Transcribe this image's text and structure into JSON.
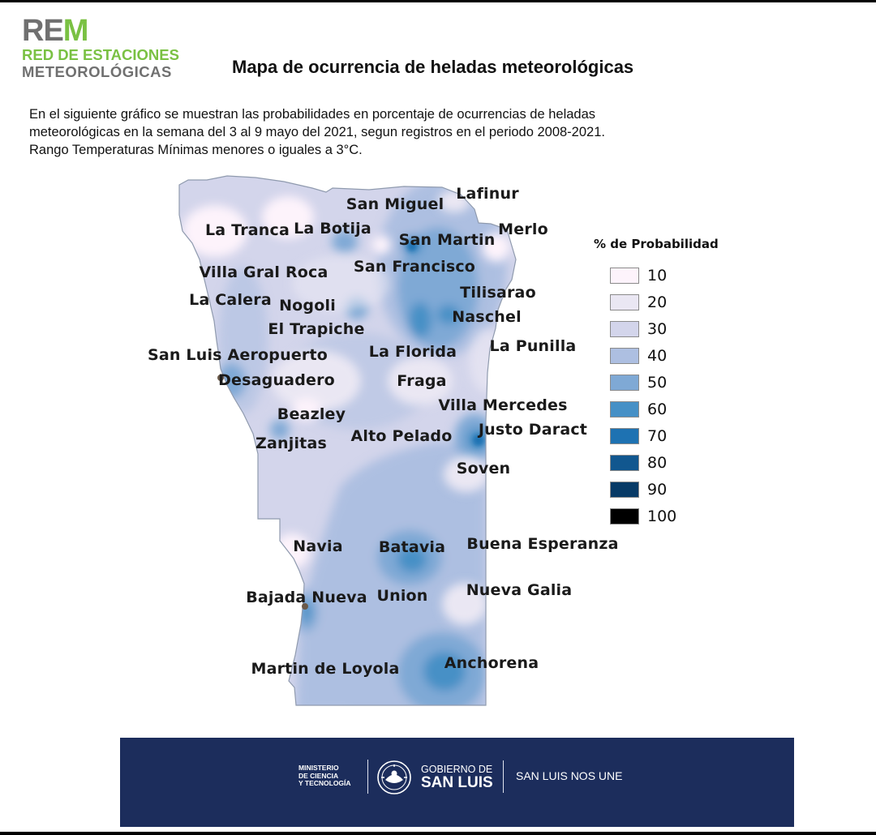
{
  "logo": {
    "rem_re": "RE",
    "rem_m": "M",
    "line2": "RED DE ESTACIONES",
    "line3": "METEOROLÓGICAS"
  },
  "title": "Mapa de ocurrencia  de heladas meteorológicas",
  "description": [
    "En el siguiente gráfico se muestran las probabilidades en porcentaje de ocurrencias de heladas",
    "meteorológicas en la semana del 3 al 9  mayo del 2021, segun registros en el periodo 2008-2021.",
    "Rango Temperaturas Mínimas menores o iguales a 3°C."
  ],
  "places": {
    "lafinur": "Lafinur",
    "san_miguel": "San Miguel",
    "la_tranca": "La Tranca",
    "la_botija": "La Botija",
    "san_martin": "San Martin",
    "merlo": "Merlo",
    "villa_gral_roca": "Villa Gral Roca",
    "san_francisco": "San Francisco",
    "tilisarao": "Tilisarao",
    "la_calera": "La Calera",
    "nogoli": "Nogoli",
    "naschel": "Naschel",
    "el_trapiche": "El Trapiche",
    "la_punilla": "La Punilla",
    "san_luis_aeropuerto": "San Luis Aeropuerto",
    "la_florida": "La Florida",
    "desaguadero": "Desaguadero",
    "fraga": "Fraga",
    "villa_mercedes": "Villa Mercedes",
    "beazley": "Beazley",
    "justo_daract": "Justo Daract",
    "alto_pelado": "Alto Pelado",
    "zanjitas": "Zanjitas",
    "soven": "Soven",
    "navia": "Navia",
    "batavia": "Batavia",
    "buena_esperanza": "Buena Esperanza",
    "nueva_galia": "Nueva Galia",
    "bajada_nueva": "Bajada Nueva",
    "union": "Union",
    "anchorena": "Anchorena",
    "martin_de_loyola": "Martin de Loyola"
  },
  "legend": {
    "title": "% de Probabilidad",
    "items": [
      {
        "value": "10",
        "color": "#fdf3fb"
      },
      {
        "value": "20",
        "color": "#eae7f3"
      },
      {
        "value": "30",
        "color": "#d3d5eb"
      },
      {
        "value": "40",
        "color": "#adbfe1"
      },
      {
        "value": "50",
        "color": "#7fa9d5"
      },
      {
        "value": "60",
        "color": "#4690c6"
      },
      {
        "value": "70",
        "color": "#1e72b2"
      },
      {
        "value": "80",
        "color": "#11578f"
      },
      {
        "value": "90",
        "color": "#073a66"
      },
      {
        "value": "100",
        "color": "#000000"
      }
    ]
  },
  "footer": {
    "ministerio": [
      "MINISTERIO",
      "DE CIENCIA",
      "Y TECNOLOGÍA"
    ],
    "gobierno": "GOBIERNO DE",
    "san_luis": "SAN LUIS",
    "slogan": "SAN LUIS NOS UNE"
  }
}
